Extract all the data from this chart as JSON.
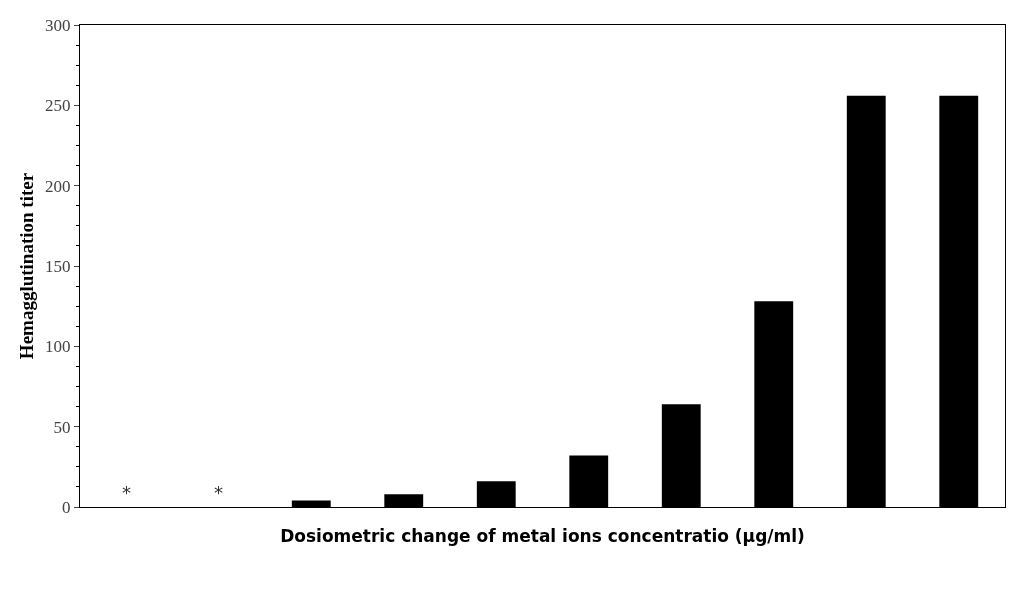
{
  "chart_data": {
    "type": "bar",
    "xlabel": "Dosiometric change of metal ions concentratio (µg/ml)",
    "ylabel": "Hemagglutination titer",
    "categories": [
      null,
      null,
      null,
      null,
      null,
      null,
      null,
      null,
      null,
      null
    ],
    "values": [
      0,
      0,
      4,
      8,
      16,
      32,
      64,
      128,
      256,
      256
    ],
    "color": "#000000",
    "ylim": [
      0,
      300
    ],
    "yticks": [
      0,
      50,
      100,
      150,
      200,
      250,
      300
    ],
    "annotations": [
      {
        "text": "*",
        "y": 0
      },
      {
        "text": "*",
        "y": 0
      }
    ]
  }
}
